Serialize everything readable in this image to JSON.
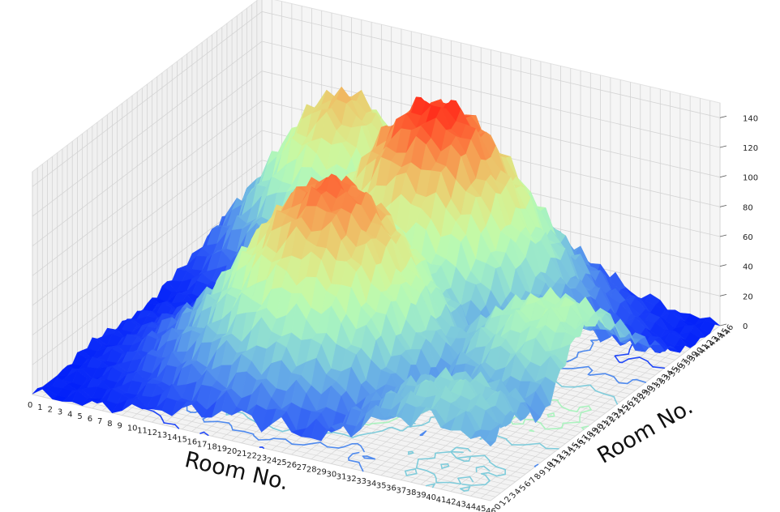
{
  "chart_data": {
    "type": "surface3d",
    "title": "",
    "xlabel": "Room No.",
    "ylabel": "Room No.",
    "zlabel": "",
    "x_range": [
      0,
      46
    ],
    "y_range": [
      0,
      46
    ],
    "zlim": [
      0,
      150
    ],
    "x_ticks": [
      "0",
      "1",
      "2",
      "3",
      "4",
      "5",
      "6",
      "7",
      "8",
      "9",
      "10",
      "11",
      "12",
      "13",
      "14",
      "15",
      "16",
      "17",
      "18",
      "19",
      "20",
      "21",
      "22",
      "23",
      "24",
      "25",
      "26",
      "27",
      "28",
      "29",
      "30",
      "31",
      "32",
      "33",
      "34",
      "35",
      "36",
      "37",
      "38",
      "39",
      "40",
      "41",
      "42",
      "43",
      "44",
      "45",
      "46"
    ],
    "y_ticks": [
      "0",
      "1",
      "2",
      "3",
      "4",
      "5",
      "6",
      "7",
      "8",
      "9",
      "10",
      "11",
      "12",
      "13",
      "14",
      "15",
      "16",
      "17",
      "18",
      "19",
      "20",
      "21",
      "22",
      "23",
      "24",
      "25",
      "26",
      "27",
      "28",
      "29",
      "30",
      "31",
      "32",
      "33",
      "34",
      "35",
      "36",
      "37",
      "38",
      "39",
      "40",
      "41",
      "42",
      "43",
      "44",
      "45",
      "46"
    ],
    "z_ticks": [
      "0",
      "20",
      "40",
      "60",
      "80",
      "100",
      "120",
      "140"
    ],
    "colormap": "rainbow",
    "grid": true,
    "floor_contours": true,
    "peaks": [
      {
        "x": 22,
        "y": 16,
        "z": 135
      },
      {
        "x": 24,
        "y": 33,
        "z": 148
      },
      {
        "x": 11,
        "y": 40,
        "z": 115
      },
      {
        "x": 42,
        "y": 20,
        "z": 75
      },
      {
        "x": 40,
        "y": 5,
        "z": 55
      }
    ]
  }
}
